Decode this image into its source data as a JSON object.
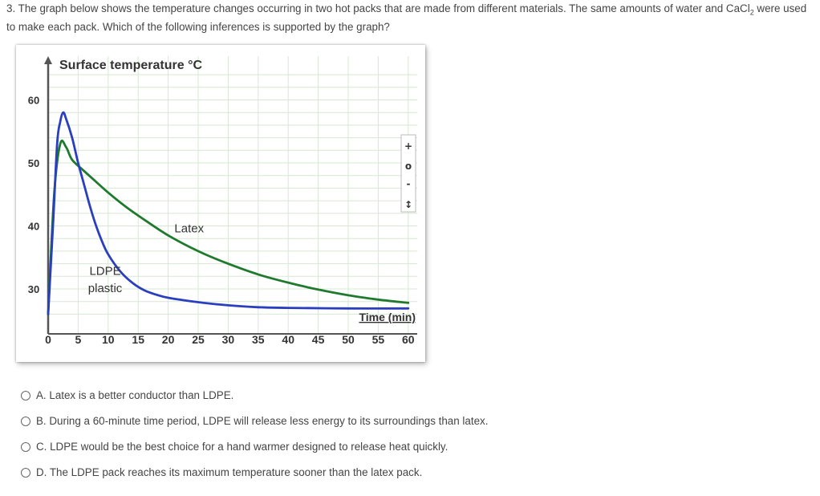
{
  "question": {
    "number": "3.",
    "text_before_formula": "The graph below shows the temperature changes occurring in two hot packs that are made from different materials. The same amounts of water and CaCl",
    "formula_subscript": "2",
    "text_after_formula": " were used to make each pack. Which of the following inferences is supported by the graph?"
  },
  "chart_data": {
    "type": "line",
    "title": "Surface temperature °C",
    "xlabel": "Time (min)",
    "ylabel": "Surface temperature °C",
    "xlim": [
      0,
      60
    ],
    "ylim": [
      25,
      65
    ],
    "x_ticks": [
      "0",
      "5",
      "10",
      "15",
      "20",
      "25",
      "30",
      "35",
      "40",
      "45",
      "50",
      "55",
      "60"
    ],
    "y_ticks": [
      "30",
      "40",
      "50",
      "60"
    ],
    "grid": true,
    "series": [
      {
        "name": "Latex",
        "color": "#1f7a2e",
        "x": [
          0,
          1,
          2,
          3,
          4,
          6,
          8,
          10,
          13,
          16,
          20,
          25,
          30,
          35,
          40,
          45,
          50,
          55,
          60
        ],
        "y": [
          26,
          45,
          53,
          52.5,
          50.5,
          48.7,
          47,
          45.3,
          43,
          41,
          38.5,
          36,
          34,
          32.3,
          31,
          29.9,
          29,
          28.3,
          27.8
        ]
      },
      {
        "name": "LDPE plastic",
        "color": "#2a3fbf",
        "x": [
          0,
          0.8,
          1.5,
          2,
          2.5,
          3,
          4,
          5,
          6,
          7,
          8,
          9,
          10,
          12,
          14,
          16,
          18,
          20,
          25,
          30,
          35,
          40,
          50,
          60
        ],
        "y": [
          26,
          40,
          53,
          56.5,
          58,
          57,
          54,
          50,
          46.5,
          43,
          40,
          37.5,
          35.5,
          32.8,
          31,
          29.8,
          29.1,
          28.6,
          27.9,
          27.4,
          27.1,
          27,
          26.9,
          26.9
        ]
      }
    ],
    "annotations": [
      {
        "text": "Latex",
        "x": 23.5,
        "y": 39
      },
      {
        "text": "LDPE",
        "x": 9.5,
        "y": 32.2
      },
      {
        "text": "plastic",
        "x": 9.5,
        "y": 29.5
      }
    ]
  },
  "zoom_controls": {
    "zoom_in": "+",
    "reset": "o",
    "zoom_out": "-",
    "pan": "↕"
  },
  "options": [
    {
      "label": "A. Latex is a better conductor than LDPE."
    },
    {
      "label": "B. During a 60-minute time period, LDPE will release less energy to its surroundings than latex."
    },
    {
      "label": "C. LDPE would be the best choice for a hand warmer designed to release heat quickly."
    },
    {
      "label": "D. The LDPE pack reaches its maximum temperature sooner than the latex pack."
    }
  ]
}
